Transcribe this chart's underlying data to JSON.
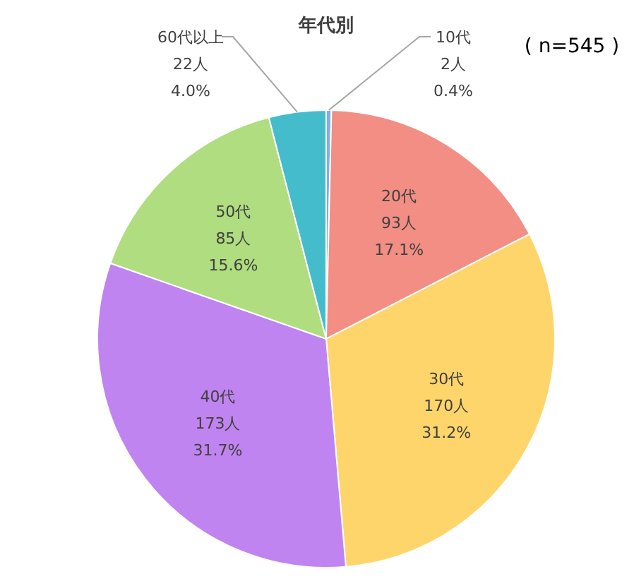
{
  "chart_data": {
    "type": "pie",
    "title": "年代別",
    "annotations": [
      "( n=545 )"
    ],
    "categories": [
      "10代",
      "20代",
      "30代",
      "40代",
      "50代",
      "60代以上"
    ],
    "values": [
      2,
      93,
      170,
      173,
      85,
      22
    ],
    "value_labels": [
      "2人\n0.4%",
      "93人\n17.1%",
      "170人\n31.2%",
      "173人\n31.7%",
      "85人\n15.6%",
      "22人\n4.0%"
    ],
    "colors": [
      "#7fb0e8",
      "#f28e84",
      "#fed56a",
      "#c084f0",
      "#b0dd80",
      "#45bccb"
    ]
  }
}
